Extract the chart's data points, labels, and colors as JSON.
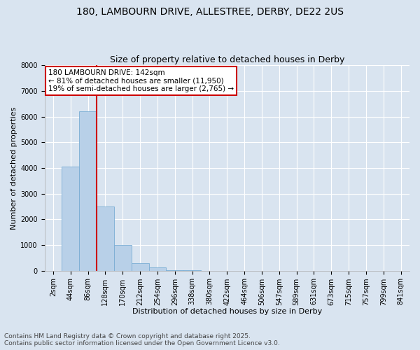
{
  "title_line1": "180, LAMBOURN DRIVE, ALLESTREE, DERBY, DE22 2US",
  "title_line2": "Size of property relative to detached houses in Derby",
  "xlabel": "Distribution of detached houses by size in Derby",
  "ylabel": "Number of detached properties",
  "categories": [
    "2sqm",
    "44sqm",
    "86sqm",
    "128sqm",
    "170sqm",
    "212sqm",
    "254sqm",
    "296sqm",
    "338sqm",
    "380sqm",
    "422sqm",
    "464sqm",
    "506sqm",
    "547sqm",
    "589sqm",
    "631sqm",
    "673sqm",
    "715sqm",
    "757sqm",
    "799sqm",
    "841sqm"
  ],
  "values": [
    0,
    4050,
    6200,
    2500,
    1000,
    300,
    120,
    30,
    5,
    0,
    0,
    0,
    0,
    0,
    0,
    0,
    0,
    0,
    0,
    0,
    0
  ],
  "bar_color": "#b8d0e8",
  "bar_edge_color": "#7aadd4",
  "vline_color": "#cc0000",
  "vline_x": 2.5,
  "annotation_text": "180 LAMBOURN DRIVE: 142sqm\n← 81% of detached houses are smaller (11,950)\n19% of semi-detached houses are larger (2,765) →",
  "annotation_box_facecolor": "#ffffff",
  "annotation_box_edgecolor": "#cc0000",
  "ylim": [
    0,
    8000
  ],
  "yticks": [
    0,
    1000,
    2000,
    3000,
    4000,
    5000,
    6000,
    7000,
    8000
  ],
  "bg_color": "#d9e4f0",
  "plot_bg_color": "#d9e4f0",
  "grid_color": "#ffffff",
  "footer_line1": "Contains HM Land Registry data © Crown copyright and database right 2025.",
  "footer_line2": "Contains public sector information licensed under the Open Government Licence v3.0.",
  "title_fontsize": 10,
  "subtitle_fontsize": 9,
  "axis_label_fontsize": 8,
  "tick_fontsize": 7,
  "annotation_fontsize": 7.5,
  "footer_fontsize": 6.5
}
